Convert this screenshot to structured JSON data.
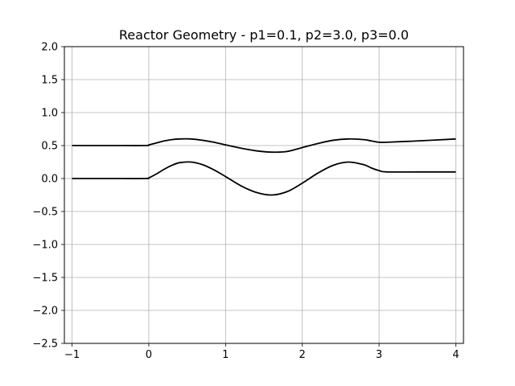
{
  "chart_data": {
    "type": "line",
    "title": "Reactor Geometry - p1=0.1, p2=3.0, p3=0.0",
    "xlabel": "",
    "ylabel": "",
    "xlim": [
      -1.1,
      4.1
    ],
    "ylim": [
      -2.5,
      2.0
    ],
    "xticks": [
      -1,
      0,
      1,
      2,
      3,
      4
    ],
    "xtick_labels": [
      "−1",
      "0",
      "1",
      "2",
      "3",
      "4"
    ],
    "yticks": [
      2.0,
      1.5,
      1.0,
      0.5,
      0.0,
      -0.5,
      -1.0,
      -1.5,
      -2.0,
      -2.5
    ],
    "ytick_labels": [
      "2.0",
      "1.5",
      "1.0",
      "0.5",
      "0.0",
      "−0.5",
      "−1.0",
      "−1.5",
      "−2.0",
      "−2.5"
    ],
    "grid": true,
    "line_color": "#000000",
    "grid_color": "#b0b0b0",
    "series": [
      {
        "x": [
          -1.0,
          -0.5,
          -0.05,
          0.0,
          0.1,
          0.2,
          0.3,
          0.4,
          0.55,
          0.7,
          0.85,
          1.0,
          1.2,
          1.4,
          1.6,
          1.8,
          2.0,
          2.2,
          2.4,
          2.6,
          2.8,
          2.9,
          3.0,
          3.1,
          3.5,
          4.0
        ],
        "y": [
          0.5,
          0.5,
          0.5,
          0.51,
          0.54,
          0.57,
          0.59,
          0.6,
          0.6,
          0.58,
          0.55,
          0.51,
          0.46,
          0.42,
          0.4,
          0.41,
          0.47,
          0.53,
          0.58,
          0.6,
          0.59,
          0.57,
          0.55,
          0.55,
          0.57,
          0.6
        ]
      },
      {
        "x": [
          -1.0,
          -0.5,
          -0.05,
          0.0,
          0.1,
          0.2,
          0.3,
          0.4,
          0.55,
          0.7,
          0.85,
          1.0,
          1.2,
          1.4,
          1.6,
          1.8,
          2.0,
          2.2,
          2.4,
          2.6,
          2.8,
          2.9,
          3.0,
          3.1,
          3.5,
          4.0
        ],
        "y": [
          0.0,
          0.0,
          0.0,
          0.01,
          0.07,
          0.14,
          0.2,
          0.24,
          0.25,
          0.21,
          0.13,
          0.03,
          -0.11,
          -0.21,
          -0.25,
          -0.2,
          -0.07,
          0.08,
          0.2,
          0.25,
          0.21,
          0.16,
          0.12,
          0.1,
          0.1,
          0.1
        ]
      }
    ]
  }
}
